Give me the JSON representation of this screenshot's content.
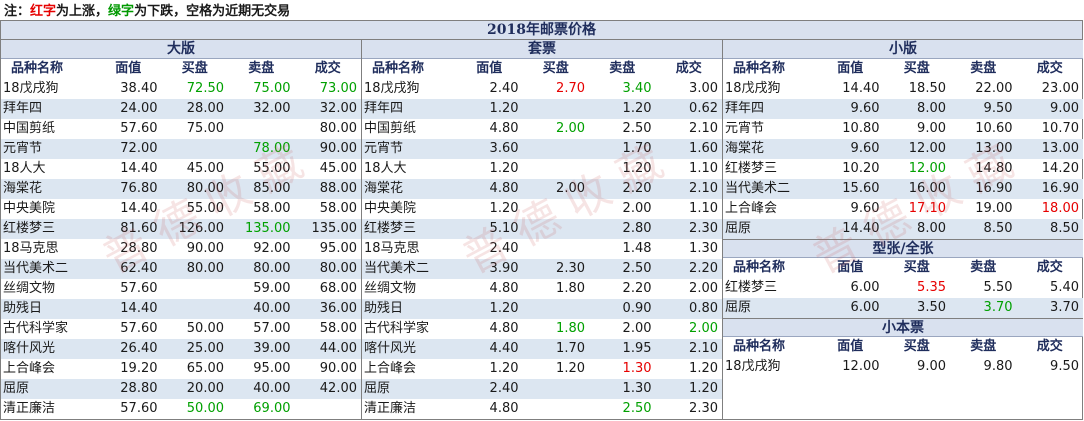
{
  "note": {
    "prefix": "注：",
    "red": "红字",
    "mid1": "为上涨，",
    "green": "绿字",
    "mid2": "为下跌，空格为近期无交易"
  },
  "title": "2018年邮票价格",
  "columns": [
    "品种名称",
    "面值",
    "买盘",
    "卖盘",
    "成交"
  ],
  "sections": {
    "daban": {
      "title": "大版",
      "rows": [
        {
          "name": "18戊戌狗",
          "face": "38.40",
          "bid": "72.50",
          "ask": "75.00",
          "deal": "73.00",
          "bid_c": "down",
          "ask_c": "down",
          "deal_c": "down"
        },
        {
          "name": "拜年四",
          "face": "24.00",
          "bid": "28.00",
          "ask": "32.00",
          "deal": "32.00"
        },
        {
          "name": "中国剪纸",
          "face": "57.60",
          "bid": "75.00",
          "ask": "",
          "deal": "80.00"
        },
        {
          "name": "元宵节",
          "face": "72.00",
          "bid": "",
          "ask": "78.00",
          "deal": "90.00",
          "ask_c": "down"
        },
        {
          "name": "18人大",
          "face": "14.40",
          "bid": "45.00",
          "ask": "55.00",
          "deal": "45.00"
        },
        {
          "name": "海棠花",
          "face": "76.80",
          "bid": "80.00",
          "ask": "85.00",
          "deal": "88.00"
        },
        {
          "name": "中央美院",
          "face": "14.40",
          "bid": "55.00",
          "ask": "58.00",
          "deal": "58.00"
        },
        {
          "name": "红楼梦三",
          "face": "81.60",
          "bid": "126.00",
          "ask": "135.00",
          "deal": "135.00",
          "ask_c": "down"
        },
        {
          "name": "18马克思",
          "face": "28.80",
          "bid": "90.00",
          "ask": "92.00",
          "deal": "95.00"
        },
        {
          "name": "当代美术二",
          "face": "62.40",
          "bid": "80.00",
          "ask": "80.00",
          "deal": "80.00"
        },
        {
          "name": "丝绸文物",
          "face": "57.60",
          "bid": "",
          "ask": "59.00",
          "deal": "68.00"
        },
        {
          "name": "助残日",
          "face": "14.40",
          "bid": "",
          "ask": "40.00",
          "deal": "36.00"
        },
        {
          "name": "古代科学家",
          "face": "57.60",
          "bid": "50.00",
          "ask": "57.00",
          "deal": "58.00"
        },
        {
          "name": "喀什风光",
          "face": "26.40",
          "bid": "25.00",
          "ask": "39.00",
          "deal": "44.00"
        },
        {
          "name": "上合峰会",
          "face": "19.20",
          "bid": "65.00",
          "ask": "95.00",
          "deal": "90.00"
        },
        {
          "name": "屈原",
          "face": "28.80",
          "bid": "20.00",
          "ask": "40.00",
          "deal": "42.00"
        },
        {
          "name": "清正廉洁",
          "face": "57.60",
          "bid": "50.00",
          "ask": "69.00",
          "deal": "",
          "bid_c": "down",
          "ask_c": "down"
        }
      ]
    },
    "taopiao": {
      "title": "套票",
      "rows": [
        {
          "name": "18戊戌狗",
          "face": "2.40",
          "bid": "2.70",
          "ask": "3.40",
          "deal": "3.00",
          "bid_c": "up",
          "ask_c": "down"
        },
        {
          "name": "拜年四",
          "face": "1.20",
          "bid": "",
          "ask": "1.20",
          "deal": "0.62"
        },
        {
          "name": "中国剪纸",
          "face": "4.80",
          "bid": "2.00",
          "ask": "2.50",
          "deal": "2.10",
          "bid_c": "down"
        },
        {
          "name": "元宵节",
          "face": "3.60",
          "bid": "",
          "ask": "1.70",
          "deal": "1.60"
        },
        {
          "name": "18人大",
          "face": "1.20",
          "bid": "",
          "ask": "1.20",
          "deal": "1.10"
        },
        {
          "name": "海棠花",
          "face": "4.80",
          "bid": "2.00",
          "ask": "2.20",
          "deal": "2.10"
        },
        {
          "name": "中央美院",
          "face": "1.20",
          "bid": "",
          "ask": "2.00",
          "deal": "1.10"
        },
        {
          "name": "红楼梦三",
          "face": "5.10",
          "bid": "",
          "ask": "2.80",
          "deal": "2.30"
        },
        {
          "name": "18马克思",
          "face": "2.40",
          "bid": "",
          "ask": "1.48",
          "deal": "1.30"
        },
        {
          "name": "当代美术二",
          "face": "3.90",
          "bid": "2.30",
          "ask": "2.50",
          "deal": "2.20"
        },
        {
          "name": "丝绸文物",
          "face": "4.80",
          "bid": "1.80",
          "ask": "2.20",
          "deal": "2.00"
        },
        {
          "name": "助残日",
          "face": "1.20",
          "bid": "",
          "ask": "0.90",
          "deal": "0.80"
        },
        {
          "name": "古代科学家",
          "face": "4.80",
          "bid": "1.80",
          "ask": "2.00",
          "deal": "2.00",
          "bid_c": "down",
          "deal_c": "down"
        },
        {
          "name": "喀什风光",
          "face": "4.40",
          "bid": "1.70",
          "ask": "1.95",
          "deal": "2.10"
        },
        {
          "name": "上合峰会",
          "face": "1.20",
          "bid": "1.20",
          "ask": "1.30",
          "deal": "1.20",
          "ask_c": "up"
        },
        {
          "name": "屈原",
          "face": "2.40",
          "bid": "",
          "ask": "1.30",
          "deal": "1.20"
        },
        {
          "name": "清正廉洁",
          "face": "4.80",
          "bid": "",
          "ask": "2.50",
          "deal": "2.30",
          "ask_c": "down"
        }
      ]
    },
    "xiaoban": {
      "title": "小版",
      "rows": [
        {
          "name": "18戊戌狗",
          "face": "14.40",
          "bid": "18.50",
          "ask": "22.00",
          "deal": "23.00"
        },
        {
          "name": "拜年四",
          "face": "9.60",
          "bid": "8.00",
          "ask": "9.50",
          "deal": "9.00"
        },
        {
          "name": "元宵节",
          "face": "10.80",
          "bid": "9.00",
          "ask": "10.60",
          "deal": "10.70"
        },
        {
          "name": "海棠花",
          "face": "9.60",
          "bid": "12.00",
          "ask": "13.00",
          "deal": "13.00"
        },
        {
          "name": "红楼梦三",
          "face": "10.20",
          "bid": "12.00",
          "ask": "14.80",
          "deal": "14.20",
          "bid_c": "down"
        },
        {
          "name": "当代美术二",
          "face": "15.60",
          "bid": "16.00",
          "ask": "16.90",
          "deal": "16.90"
        },
        {
          "name": "上合峰会",
          "face": "9.60",
          "bid": "17.10",
          "ask": "19.00",
          "deal": "18.00",
          "bid_c": "up",
          "deal_c": "up"
        },
        {
          "name": "屈原",
          "face": "14.40",
          "bid": "8.00",
          "ask": "8.50",
          "deal": "8.50"
        }
      ]
    },
    "xingzhang": {
      "title": "型张/全张",
      "rows": [
        {
          "name": "红楼梦三",
          "face": "6.00",
          "bid": "5.35",
          "ask": "5.50",
          "deal": "5.40",
          "bid_c": "up"
        },
        {
          "name": "屈原",
          "face": "6.00",
          "bid": "3.50",
          "ask": "3.70",
          "deal": "3.70",
          "ask_c": "down"
        }
      ]
    },
    "xiaobenpiao": {
      "title": "小本票",
      "rows": [
        {
          "name": "18戊戌狗",
          "face": "12.00",
          "bid": "9.00",
          "ask": "9.80",
          "deal": "9.50"
        }
      ]
    }
  },
  "colors": {
    "up": "#e60000",
    "down": "#00a000",
    "header_bg": "#d9e1ef",
    "alt_row_bg": "#dce6f1"
  }
}
